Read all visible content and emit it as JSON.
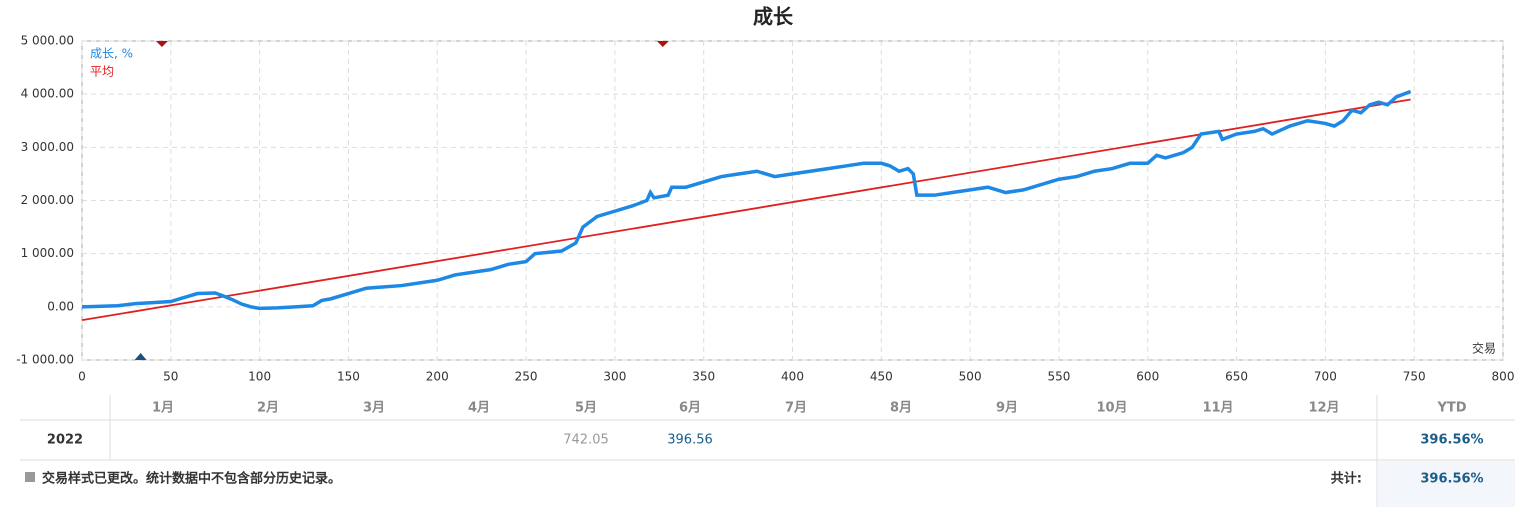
{
  "chart_data": {
    "type": "line",
    "title": "成长",
    "x_label": "交易",
    "xlim": [
      0,
      800
    ],
    "xticks": [
      0,
      50,
      100,
      150,
      200,
      250,
      300,
      350,
      400,
      450,
      500,
      550,
      600,
      650,
      700,
      750,
      800
    ],
    "ylim": [
      -1000,
      5000
    ],
    "yticks": [
      {
        "value": -1000,
        "label": "-1 000.00"
      },
      {
        "value": 0,
        "label": "0.00"
      },
      {
        "value": 1000,
        "label": "1 000.00"
      },
      {
        "value": 2000,
        "label": "2 000.00"
      },
      {
        "value": 3000,
        "label": "3 000.00"
      },
      {
        "value": 4000,
        "label": "4 000.00"
      },
      {
        "value": 5000,
        "label": "5 000.00"
      }
    ],
    "grid": true,
    "legend": "top-left",
    "series": [
      {
        "name": "成长, %",
        "color": "#1e88e5",
        "x": [
          0,
          20,
          30,
          40,
          50,
          55,
          60,
          65,
          75,
          80,
          85,
          90,
          95,
          100,
          110,
          120,
          130,
          135,
          140,
          150,
          160,
          180,
          200,
          210,
          220,
          230,
          240,
          250,
          255,
          270,
          278,
          282,
          290,
          300,
          310,
          318,
          320,
          322,
          330,
          332,
          340,
          350,
          360,
          370,
          380,
          390,
          400,
          410,
          420,
          430,
          440,
          450,
          455,
          460,
          465,
          468,
          470,
          480,
          490,
          500,
          510,
          520,
          530,
          540,
          550,
          560,
          570,
          580,
          590,
          600,
          605,
          610,
          620,
          625,
          630,
          640,
          642,
          650,
          660,
          665,
          670,
          680,
          690,
          700,
          705,
          710,
          715,
          720,
          725,
          730,
          735,
          740,
          748
        ],
        "values": [
          0,
          20,
          60,
          80,
          100,
          150,
          200,
          250,
          260,
          200,
          130,
          50,
          0,
          -30,
          -20,
          0,
          20,
          120,
          150,
          250,
          350,
          400,
          500,
          600,
          650,
          700,
          800,
          850,
          1000,
          1050,
          1200,
          1500,
          1700,
          1800,
          1900,
          2000,
          2150,
          2050,
          2100,
          2250,
          2250,
          2350,
          2450,
          2500,
          2550,
          2450,
          2500,
          2550,
          2600,
          2650,
          2700,
          2700,
          2650,
          2550,
          2600,
          2500,
          2100,
          2100,
          2150,
          2200,
          2250,
          2150,
          2200,
          2300,
          2400,
          2450,
          2550,
          2600,
          2700,
          2700,
          2850,
          2800,
          2900,
          3000,
          3250,
          3300,
          3150,
          3250,
          3300,
          3350,
          3250,
          3400,
          3500,
          3450,
          3400,
          3500,
          3700,
          3650,
          3800,
          3850,
          3800,
          3950,
          4050
        ]
      },
      {
        "name": "平均",
        "color": "#e02020",
        "x": [
          0,
          748
        ],
        "values": [
          -250,
          3900
        ]
      }
    ],
    "down_markers_x": [
      45,
      327
    ],
    "down_marker_color": "#b01010",
    "up_markers_x": [
      33
    ],
    "up_marker_color": "#1a4f80"
  },
  "table": {
    "header": [
      "1月",
      "2月",
      "3月",
      "4月",
      "5月",
      "6月",
      "7月",
      "8月",
      "9月",
      "10月",
      "11月",
      "12月",
      "YTD"
    ],
    "rows": [
      {
        "year": "2022",
        "cells": [
          null,
          null,
          null,
          null,
          "742.05",
          "396.56",
          null,
          null,
          null,
          null,
          null,
          null
        ],
        "ytd": "396.56%"
      }
    ]
  },
  "footer": {
    "note": "交易样式已更改。统计数据中不包含部分历史记录。",
    "total_label": "共计:",
    "total_value": "396.56%"
  }
}
